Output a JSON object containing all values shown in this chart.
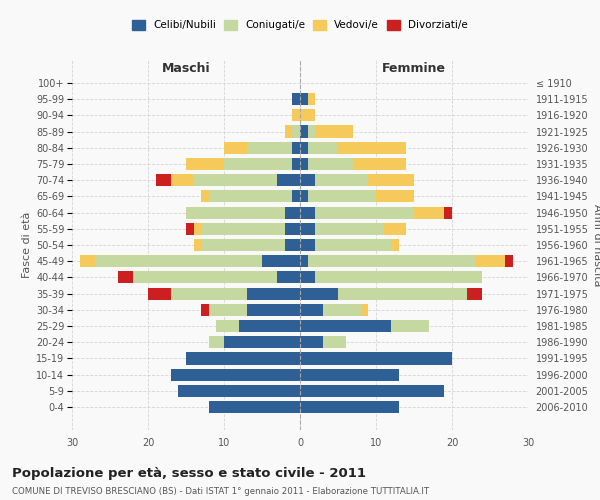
{
  "age_groups": [
    "0-4",
    "5-9",
    "10-14",
    "15-19",
    "20-24",
    "25-29",
    "30-34",
    "35-39",
    "40-44",
    "45-49",
    "50-54",
    "55-59",
    "60-64",
    "65-69",
    "70-74",
    "75-79",
    "80-84",
    "85-89",
    "90-94",
    "95-99",
    "100+"
  ],
  "birth_years": [
    "2006-2010",
    "2001-2005",
    "1996-2000",
    "1991-1995",
    "1986-1990",
    "1981-1985",
    "1976-1980",
    "1971-1975",
    "1966-1970",
    "1961-1965",
    "1956-1960",
    "1951-1955",
    "1946-1950",
    "1941-1945",
    "1936-1940",
    "1931-1935",
    "1926-1930",
    "1921-1925",
    "1916-1920",
    "1911-1915",
    "≤ 1910"
  ],
  "maschi": {
    "celibi": [
      12,
      16,
      17,
      15,
      10,
      8,
      7,
      7,
      3,
      5,
      2,
      2,
      2,
      1,
      3,
      1,
      1,
      0,
      0,
      1,
      0
    ],
    "coniugati": [
      0,
      0,
      0,
      0,
      2,
      3,
      5,
      10,
      19,
      22,
      11,
      11,
      13,
      11,
      11,
      9,
      6,
      1,
      0,
      0,
      0
    ],
    "vedovi": [
      0,
      0,
      0,
      0,
      0,
      0,
      0,
      0,
      0,
      2,
      1,
      1,
      0,
      1,
      3,
      5,
      3,
      1,
      1,
      0,
      0
    ],
    "divorziati": [
      0,
      0,
      0,
      0,
      0,
      0,
      1,
      3,
      2,
      0,
      0,
      1,
      0,
      0,
      2,
      0,
      0,
      0,
      0,
      0,
      0
    ]
  },
  "femmine": {
    "nubili": [
      13,
      19,
      13,
      20,
      3,
      12,
      3,
      5,
      2,
      1,
      2,
      2,
      2,
      1,
      2,
      1,
      1,
      1,
      0,
      1,
      0
    ],
    "coniugate": [
      0,
      0,
      0,
      0,
      3,
      5,
      5,
      17,
      22,
      22,
      10,
      9,
      13,
      9,
      7,
      6,
      4,
      1,
      0,
      0,
      0
    ],
    "vedove": [
      0,
      0,
      0,
      0,
      0,
      0,
      1,
      0,
      0,
      4,
      1,
      3,
      4,
      5,
      6,
      7,
      9,
      5,
      2,
      1,
      0
    ],
    "divorziate": [
      0,
      0,
      0,
      0,
      0,
      0,
      0,
      2,
      0,
      1,
      0,
      0,
      1,
      0,
      0,
      0,
      0,
      0,
      0,
      0,
      0
    ]
  },
  "colors": {
    "celibi": "#2e6096",
    "coniugati": "#c5d8a0",
    "vedovi": "#f5c95a",
    "divorziati": "#cc1f1f"
  },
  "xlim": 30,
  "title": "Popolazione per età, sesso e stato civile - 2011",
  "subtitle": "COMUNE DI TREVISO BRESCIANO (BS) - Dati ISTAT 1° gennaio 2011 - Elaborazione TUTTITALIA.IT",
  "ylabel_left": "Fasce di età",
  "ylabel_right": "Anni di nascita",
  "xlabel_left": "Maschi",
  "xlabel_right": "Femmine",
  "bg_color": "#f9f9f9",
  "grid_color": "#cccccc"
}
